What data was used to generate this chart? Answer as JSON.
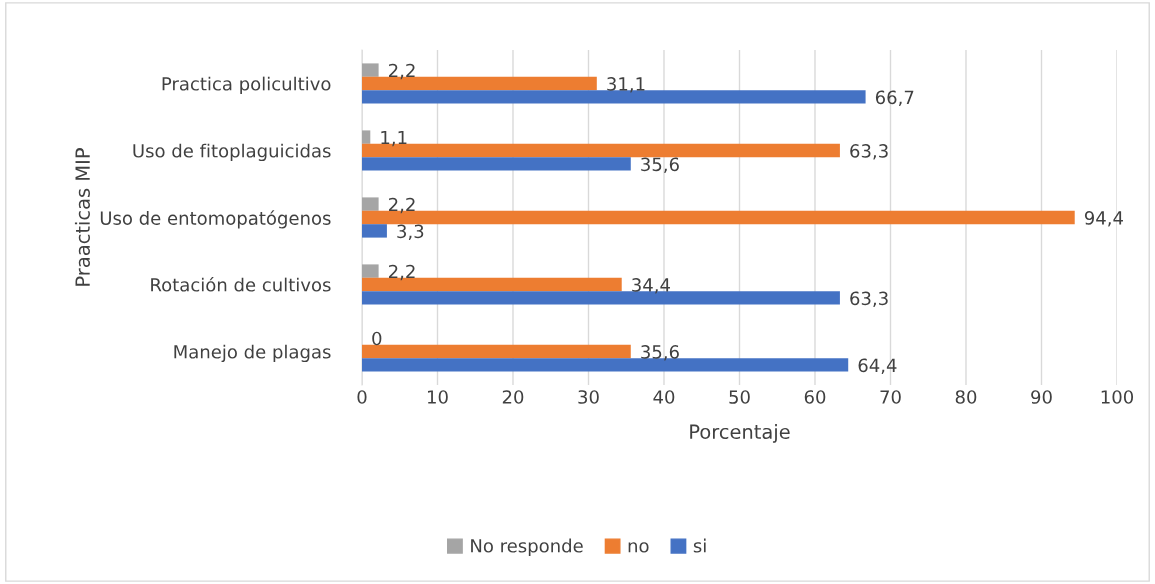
{
  "chart_data": {
    "type": "bar",
    "orientation": "horizontal",
    "xlabel": "Porcentaje",
    "ylabel": "Praacticas MIP",
    "categories": [
      "Practica policultivo",
      "Uso de fitoplaguicidas",
      "Uso de entomopatógenos",
      "Rotación de cultivos",
      "Manejo de plagas"
    ],
    "series": [
      {
        "name": "No responde",
        "color": "#a5a5a5",
        "values": [
          2.2,
          1.1,
          2.2,
          2.2,
          0
        ],
        "value_labels": [
          "2,2",
          "1,1",
          "2,2",
          "2,2",
          "0"
        ]
      },
      {
        "name": "no",
        "color": "#ed7d31",
        "values": [
          31.1,
          63.3,
          94.4,
          34.4,
          35.6
        ],
        "value_labels": [
          "31,1",
          "63,3",
          "94,4",
          "34,4",
          "35,6"
        ]
      },
      {
        "name": "si",
        "color": "#4472c4",
        "values": [
          66.7,
          35.6,
          3.3,
          63.3,
          64.4
        ],
        "value_labels": [
          "66,7",
          "35,6",
          "3,3",
          "63,3",
          "64,4"
        ]
      }
    ],
    "xlim": [
      0,
      100
    ],
    "xticks": [
      0,
      10,
      20,
      30,
      40,
      50,
      60,
      70,
      80,
      90,
      100
    ],
    "grid": "x",
    "legend": "bottom"
  }
}
